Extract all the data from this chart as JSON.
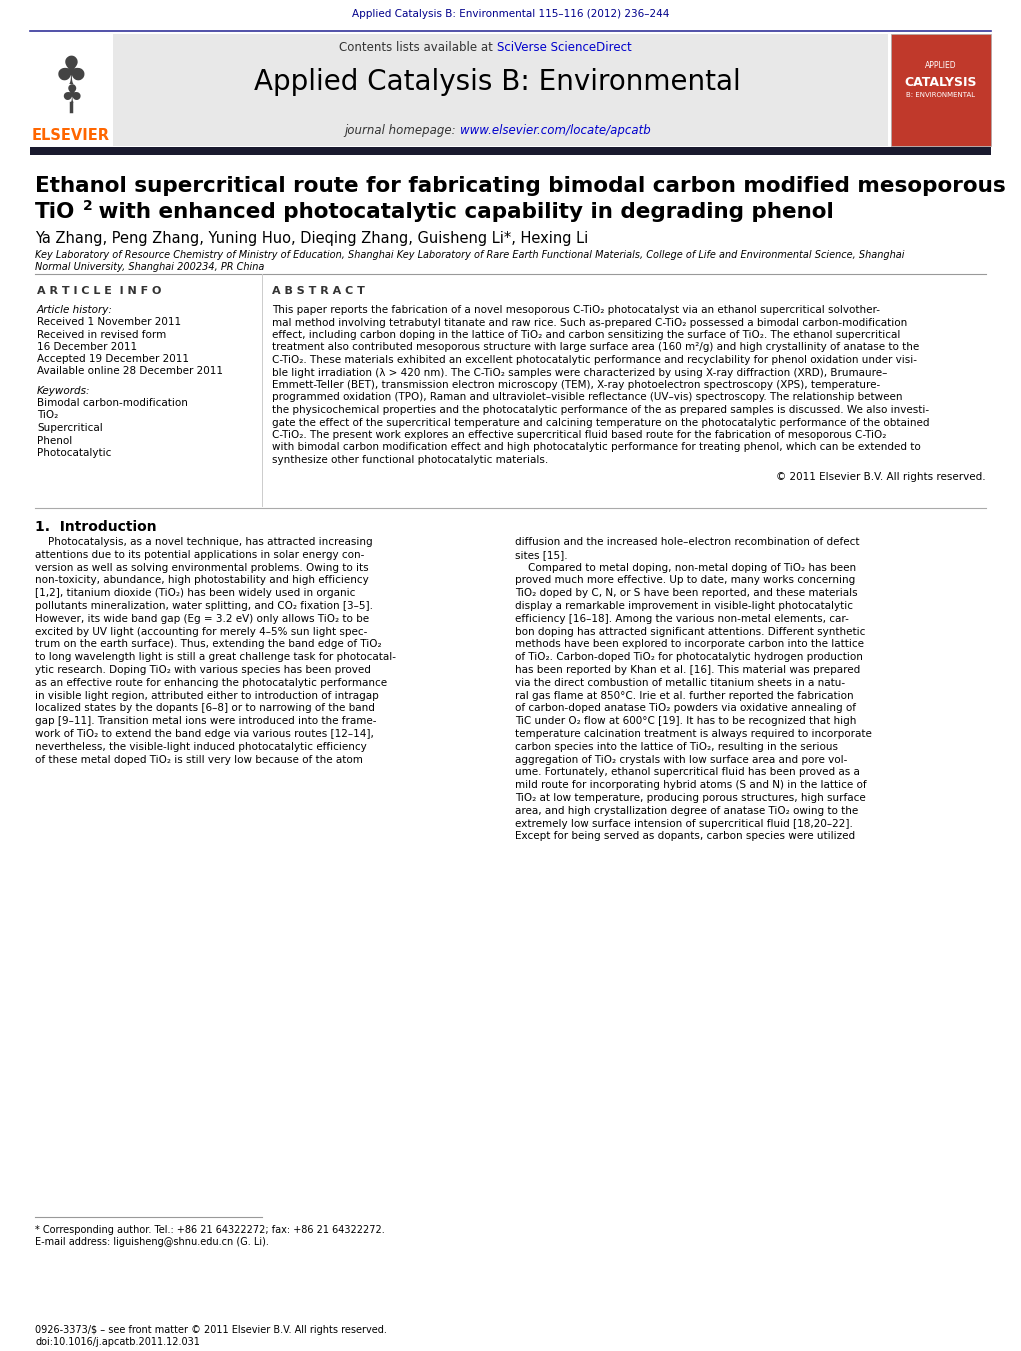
{
  "page_bg": "#ffffff",
  "journal_header_bg": "#e8e8e8",
  "journal_title": "Applied Catalysis B: Environmental",
  "journal_title_color": "#000000",
  "contents_text": "Contents lists available at ",
  "sciverse_text": "SciVerse ScienceDirect",
  "sciverse_color": "#0000cc",
  "homepage_text": "journal homepage: ",
  "homepage_url": "www.elsevier.com/locate/apcatb",
  "homepage_url_color": "#0000cc",
  "top_journal_ref": "Applied Catalysis B: Environmental 115–116 (2012) 236–244",
  "top_journal_ref_color": "#00008B",
  "article_title_line1": "Ethanol supercritical route for fabricating bimodal carbon modified mesoporous",
  "article_title_color": "#000000",
  "authors": "Ya Zhang, Peng Zhang, Yuning Huo, Dieqing Zhang, Guisheng Li*, Hexing Li",
  "authors_color": "#000000",
  "affiliation1": "Key Laboratory of Resource Chemistry of Ministry of Education, Shanghai Key Laboratory of Rare Earth Functional Materials, College of Life and Environmental Science, Shanghai",
  "affiliation2": "Normal University, Shanghai 200234, PR China",
  "affiliation_color": "#000000",
  "article_info_label": "A R T I C L E  I N F O",
  "abstract_label": "A B S T R A C T",
  "article_history_label": "Article history:",
  "received_text": "Received 1 November 2011",
  "received_revised1": "Received in revised form",
  "received_revised2": "16 December 2011",
  "accepted_text": "Accepted 19 December 2011",
  "available_text": "Available online 28 December 2011",
  "keywords_label": "Keywords:",
  "keywords": [
    "Bimodal carbon-modification",
    "TiO₂",
    "Supercritical",
    "Phenol",
    "Photocatalytic"
  ],
  "abstract_lines": [
    "This paper reports the fabrication of a novel mesoporous C-TiO₂ photocatalyst via an ethanol supercritical solvother-",
    "mal method involving tetrabutyl titanate and raw rice. Such as-prepared C-TiO₂ possessed a bimodal carbon-modification",
    "effect, including carbon doping in the lattice of TiO₂ and carbon sensitizing the surface of TiO₂. The ethanol supercritical",
    "treatment also contributed mesoporous structure with large surface area (160 m²/g) and high crystallinity of anatase to the",
    "C-TiO₂. These materials exhibited an excellent photocatalytic performance and recyclability for phenol oxidation under visi-",
    "ble light irradiation (λ > 420 nm). The C-TiO₂ samples were characterized by using X-ray diffraction (XRD), Brumaure–",
    "Emmett-Teller (BET), transmission electron microscopy (TEM), X-ray photoelectron spectroscopy (XPS), temperature-",
    "programmed oxidation (TPO), Raman and ultraviolet–visible reflectance (UV–vis) spectroscopy. The relationship between",
    "the physicochemical properties and the photocatalytic performance of the as prepared samples is discussed. We also investi-",
    "gate the effect of the supercritical temperature and calcining temperature on the photocatalytic performance of the obtained",
    "C-TiO₂. The present work explores an effective supercritical fluid based route for the fabrication of mesoporous C-TiO₂",
    "with bimodal carbon modification effect and high photocatalytic performance for treating phenol, which can be extended to",
    "synthesize other functional photocatalytic materials."
  ],
  "copyright_text": "© 2011 Elsevier B.V. All rights reserved.",
  "intro_heading": "1.  Introduction",
  "intro_col1_lines": [
    "    Photocatalysis, as a novel technique, has attracted increasing",
    "attentions due to its potential applications in solar energy con-",
    "version as well as solving environmental problems. Owing to its",
    "non-toxicity, abundance, high photostability and high efficiency",
    "[1,2], titanium dioxide (TiO₂) has been widely used in organic",
    "pollutants mineralization, water splitting, and CO₂ fixation [3–5].",
    "However, its wide band gap (Eg = 3.2 eV) only allows TiO₂ to be",
    "excited by UV light (accounting for merely 4–5% sun light spec-",
    "trum on the earth surface). Thus, extending the band edge of TiO₂",
    "to long wavelength light is still a great challenge task for photocatal-",
    "ytic research. Doping TiO₂ with various species has been proved",
    "as an effective route for enhancing the photocatalytic performance",
    "in visible light region, attributed either to introduction of intragap",
    "localized states by the dopants [6–8] or to narrowing of the band",
    "gap [9–11]. Transition metal ions were introduced into the frame-",
    "work of TiO₂ to extend the band edge via various routes [12–14],",
    "nevertheless, the visible-light induced photocatalytic efficiency",
    "of these metal doped TiO₂ is still very low because of the atom"
  ],
  "intro_col2_lines": [
    "diffusion and the increased hole–electron recombination of defect",
    "sites [15].",
    "    Compared to metal doping, non-metal doping of TiO₂ has been",
    "proved much more effective. Up to date, many works concerning",
    "TiO₂ doped by C, N, or S have been reported, and these materials",
    "display a remarkable improvement in visible-light photocatalytic",
    "efficiency [16–18]. Among the various non-metal elements, car-",
    "bon doping has attracted significant attentions. Different synthetic",
    "methods have been explored to incorporate carbon into the lattice",
    "of TiO₂. Carbon-doped TiO₂ for photocatalytic hydrogen production",
    "has been reported by Khan et al. [16]. This material was prepared",
    "via the direct combustion of metallic titanium sheets in a natu-",
    "ral gas flame at 850°C. Irie et al. further reported the fabrication",
    "of carbon-doped anatase TiO₂ powders via oxidative annealing of",
    "TiC under O₂ flow at 600°C [19]. It has to be recognized that high",
    "temperature calcination treatment is always required to incorporate",
    "carbon species into the lattice of TiO₂, resulting in the serious",
    "aggregation of TiO₂ crystals with low surface area and pore vol-",
    "ume. Fortunately, ethanol supercritical fluid has been proved as a",
    "mild route for incorporating hybrid atoms (S and N) in the lattice of",
    "TiO₂ at low temperature, producing porous structures, high surface",
    "area, and high crystallization degree of anatase TiO₂ owing to the",
    "extremely low surface intension of supercritical fluid [18,20–22].",
    "Except for being served as dopants, carbon species were utilized"
  ],
  "footnote_star": "* Corresponding author. Tel.: +86 21 64322272; fax: +86 21 64322272.",
  "footnote_email": "E-mail address: liguisheng@shnu.edu.cn (G. Li).",
  "issn_text": "0926-3373/$ – see front matter © 2011 Elsevier B.V. All rights reserved.",
  "doi_text": "doi:10.1016/j.apcatb.2011.12.031",
  "elsevier_color": "#ff6600"
}
